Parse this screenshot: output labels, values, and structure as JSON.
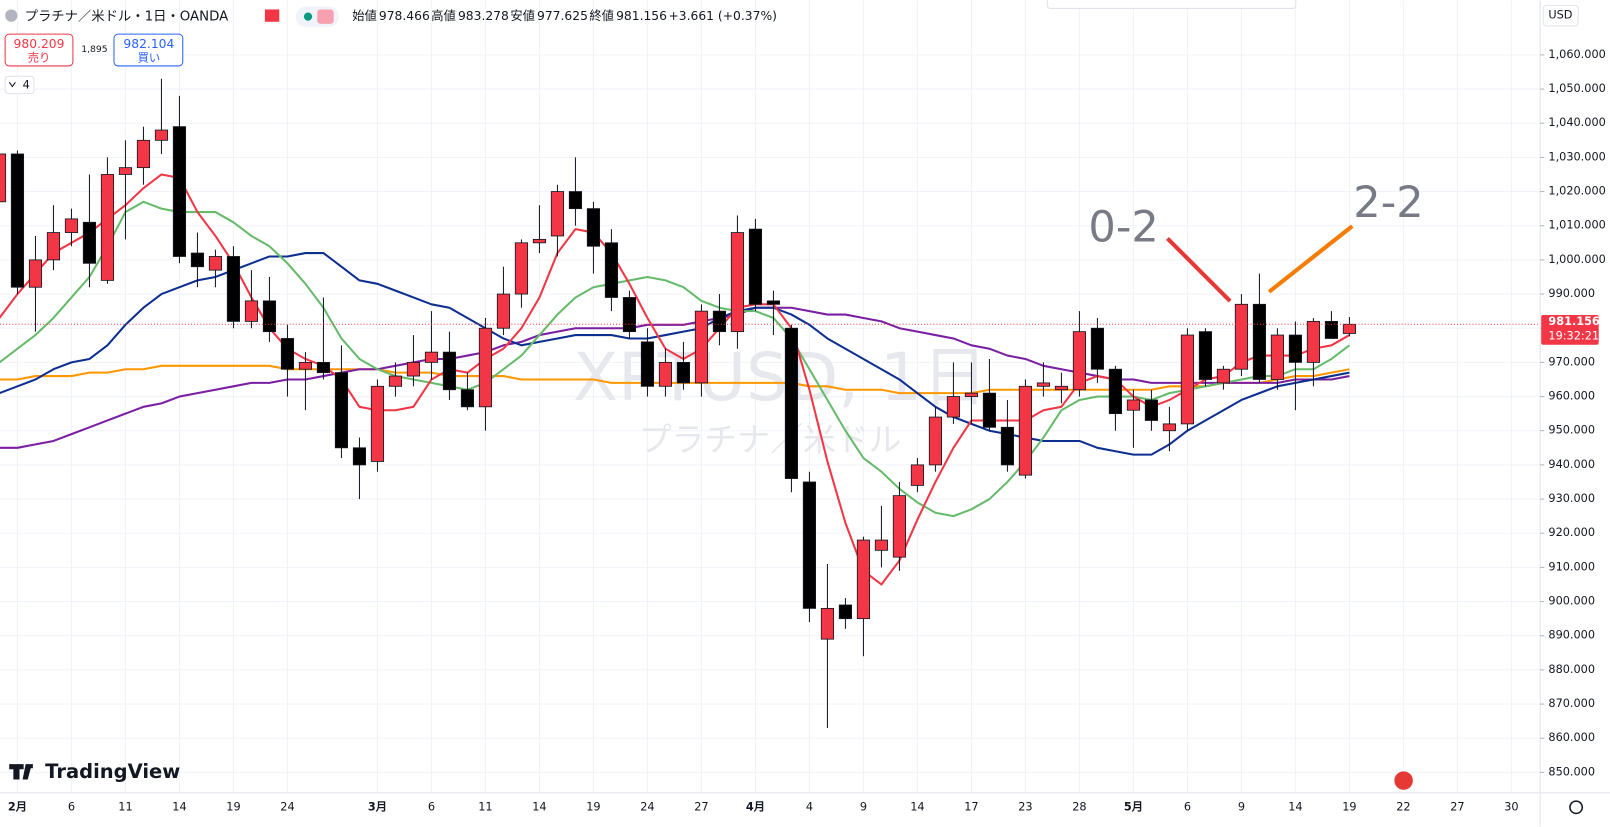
{
  "header": {
    "symbol": "プラチナ／米ドル・1日・OANDA",
    "open_label": "始値",
    "high_label": "高値",
    "low_label": "安値",
    "close_label": "終値",
    "change": "+3.661 (+0.37%)"
  },
  "trade": {
    "sell_price": 980.209,
    "sell": "売り",
    "spread": "1,895",
    "buy_price": 982.104,
    "buy": "買い"
  },
  "indicators_count": 4,
  "watermark": {
    "symbol": "XPTUSD, 1日",
    "name": "プラチナ／米ドル"
  },
  "brand": "TradingView",
  "annotations": [
    "0-2",
    "2-2"
  ],
  "countdown": "19:32:21",
  "chart_data": {
    "type": "candlestick",
    "currency": "USD",
    "categories": [
      null,
      "2月",
      null,
      null,
      "6",
      null,
      null,
      "11",
      null,
      null,
      "14",
      null,
      null,
      "19",
      null,
      null,
      "24",
      null,
      null,
      null,
      null,
      "3月",
      null,
      null,
      "6",
      null,
      null,
      "11",
      null,
      null,
      "14",
      null,
      null,
      "19",
      null,
      null,
      "24",
      null,
      null,
      "27",
      null,
      null,
      "4月",
      null,
      null,
      "4",
      null,
      null,
      "9",
      null,
      null,
      "14",
      null,
      null,
      "17",
      null,
      null,
      "23",
      null,
      null,
      "28",
      null,
      null,
      "5月",
      null,
      null,
      "6",
      null,
      null,
      "9",
      null,
      null,
      "14",
      null,
      null,
      "19",
      null,
      null,
      "22",
      null,
      null,
      "27",
      null,
      null,
      "30"
    ],
    "open": [
      1017,
      1031,
      992,
      1000,
      1008,
      1011,
      994,
      1025,
      1027,
      1035,
      1039,
      1002,
      997,
      1001,
      982,
      988,
      977,
      968,
      970,
      967,
      945,
      941,
      963,
      966,
      970,
      973,
      962,
      957,
      980,
      990,
      1005,
      1007,
      1020,
      1015,
      1005,
      989,
      976,
      963,
      970,
      964,
      985,
      979,
      1009,
      988,
      980,
      935,
      889,
      899,
      895,
      915,
      913,
      934,
      940,
      954,
      960,
      961,
      951,
      937,
      963,
      962,
      962,
      980,
      968,
      956,
      959,
      950,
      952,
      979,
      964,
      968,
      987,
      965,
      978,
      970,
      982,
      978.466,
      null,
      null,
      null,
      null,
      null,
      null,
      null,
      null,
      null
    ],
    "high": [
      1034,
      1032,
      1007,
      1016,
      1015,
      1025,
      1030,
      1035,
      1039,
      1053,
      1048,
      1008,
      1003,
      1004,
      997,
      995,
      981,
      973,
      989,
      975,
      948,
      965,
      970,
      978,
      985,
      979,
      967,
      983,
      998,
      1006,
      1016,
      1022,
      1030,
      1017,
      1009,
      991,
      980,
      974,
      976,
      987,
      990,
      1013,
      1012,
      991,
      981,
      938,
      911,
      901,
      919,
      928,
      935,
      942,
      957,
      970,
      970,
      971,
      959,
      965,
      970,
      967,
      985,
      983,
      969,
      962,
      962,
      957,
      980,
      980,
      969,
      990,
      996,
      980,
      982,
      983,
      985,
      983.278,
      null,
      null,
      null,
      null,
      null,
      null,
      null,
      null,
      null
    ],
    "low": [
      1012,
      990,
      979,
      997,
      1004,
      992,
      993,
      1006,
      1022,
      1031,
      999,
      992,
      992,
      980,
      980,
      976,
      960,
      956,
      965,
      942,
      930,
      938,
      960,
      963,
      965,
      959,
      956,
      950,
      978,
      986,
      1002,
      1001,
      1010,
      996,
      985,
      977,
      960,
      960,
      962,
      960,
      975,
      974,
      985,
      978,
      932,
      894,
      863,
      892,
      884,
      910,
      909,
      932,
      938,
      952,
      952,
      950,
      938,
      936,
      960,
      958,
      960,
      964,
      950,
      945,
      950,
      944,
      950,
      963,
      962,
      966,
      964,
      962,
      956,
      963,
      977,
      977.625,
      null,
      null,
      null,
      null,
      null,
      null,
      null,
      null,
      null
    ],
    "close": [
      1031,
      992,
      1000,
      1008,
      1012,
      999,
      1025,
      1027,
      1035,
      1038,
      1001,
      998,
      1001,
      982,
      988,
      979,
      968,
      970,
      967,
      945,
      940,
      963,
      966,
      970,
      973,
      962,
      957,
      980,
      990,
      1005,
      1006,
      1020,
      1015,
      1004,
      989,
      979,
      963,
      970,
      964,
      985,
      979,
      1008,
      987,
      987,
      936,
      898,
      898,
      895,
      918,
      918,
      931,
      940,
      954,
      960,
      961,
      951,
      940,
      963,
      964,
      963,
      979,
      968,
      955,
      959,
      953,
      952,
      978,
      965,
      968,
      987,
      965,
      978,
      970,
      982,
      977,
      981.156,
      null,
      null,
      null,
      null,
      null,
      null,
      null,
      null,
      null
    ],
    "up_color": "#f23645",
    "down_color": "#000000",
    "series": [
      {
        "color": "#ff9800",
        "values": [
          965,
          965,
          966,
          966,
          966,
          967,
          967,
          968,
          968,
          969,
          969,
          969,
          969,
          969,
          969,
          969,
          968,
          968,
          968,
          968,
          968,
          968,
          967,
          967,
          967,
          966,
          966,
          966,
          966,
          965,
          965,
          965,
          965,
          965,
          964,
          964,
          964,
          964,
          964,
          964,
          964,
          964,
          964,
          964,
          964,
          963,
          963,
          962,
          962,
          962,
          961,
          961,
          961,
          961,
          961,
          962,
          962,
          962,
          962,
          962,
          962,
          962,
          962,
          962,
          962,
          963,
          963,
          963,
          964,
          964,
          964,
          965,
          966,
          966,
          967,
          968,
          null,
          null,
          null,
          null,
          null,
          null,
          null,
          null,
          null
        ]
      },
      {
        "color": "#7b1fa2",
        "values": [
          945,
          945,
          946,
          947,
          949,
          951,
          953,
          955,
          957,
          958,
          960,
          961,
          962,
          963,
          964,
          964,
          965,
          965,
          966,
          967,
          968,
          968,
          969,
          970,
          971,
          971,
          972,
          973,
          975,
          976,
          978,
          979,
          980,
          980,
          980,
          980,
          981,
          981,
          981,
          982,
          983,
          984,
          986,
          986,
          986,
          985,
          984,
          984,
          983,
          982,
          980,
          979,
          978,
          977,
          975,
          974,
          972,
          971,
          969,
          968,
          967,
          966,
          965,
          965,
          964,
          964,
          964,
          964,
          964,
          964,
          964,
          964,
          965,
          965,
          965,
          966,
          null,
          null,
          null,
          null,
          null,
          null,
          null,
          null,
          null
        ]
      },
      {
        "color": "#0d2f8f",
        "values": [
          961,
          963,
          965,
          968,
          970,
          971,
          975,
          981,
          986,
          990,
          992,
          994,
          995,
          997,
          999,
          1001,
          1001,
          1002,
          1002,
          998,
          994,
          993,
          991,
          989,
          987,
          986,
          983,
          980,
          977,
          975,
          976,
          977,
          978,
          978,
          978,
          977,
          977,
          978,
          979,
          980,
          983,
          985,
          986,
          986,
          984,
          981,
          977,
          974,
          971,
          968,
          965,
          961,
          957,
          954,
          952,
          950,
          949,
          948,
          947,
          947,
          947,
          945,
          944,
          943,
          943,
          946,
          950,
          953,
          956,
          959,
          961,
          963,
          964,
          965,
          966,
          967,
          null,
          null,
          null,
          null,
          null,
          null,
          null,
          null,
          null
        ]
      },
      {
        "color": "#66bb6a",
        "values": [
          970,
          974,
          978,
          983,
          989,
          995,
          1004,
          1014,
          1017,
          1015,
          1014,
          1014,
          1014,
          1011,
          1007,
          1004,
          999,
          993,
          986,
          977,
          971,
          968,
          966,
          965,
          964,
          963,
          962,
          964,
          968,
          972,
          978,
          984,
          989,
          992,
          993,
          994,
          995,
          994,
          992,
          988,
          986,
          985,
          985,
          983,
          977,
          968,
          959,
          950,
          942,
          938,
          933,
          929,
          926,
          925,
          927,
          930,
          935,
          941,
          948,
          956,
          959,
          960,
          960,
          960,
          959,
          961,
          962,
          963,
          964,
          965,
          966,
          966,
          968,
          968,
          971,
          975,
          null,
          null,
          null,
          null,
          null,
          null,
          null,
          null,
          null
        ]
      },
      {
        "color": "#f23645",
        "values": [
          983,
          990,
          996,
          1002,
          1005,
          1008,
          1012,
          1016,
          1021,
          1025,
          1024,
          1014,
          1007,
          999,
          989,
          980,
          974,
          971,
          969,
          965,
          957,
          956,
          956,
          957,
          965,
          968,
          967,
          971,
          974,
          980,
          989,
          1002,
          1009,
          1008,
          1002,
          993,
          983,
          974,
          971,
          974,
          980,
          986,
          987,
          987,
          980,
          962,
          941,
          923,
          909,
          905,
          912,
          924,
          935,
          945,
          953,
          953,
          953,
          953,
          956,
          957,
          964,
          966,
          965,
          960,
          957,
          959,
          962,
          965,
          966,
          970,
          972,
          972,
          972,
          974,
          975,
          978,
          null,
          null,
          null,
          null,
          null,
          null,
          null,
          null,
          null
        ]
      }
    ],
    "ylim": [
      844,
      1076
    ],
    "yticks": [
      {
        "value": 850,
        "label": "850.000"
      },
      {
        "value": 860,
        "label": "860.000"
      },
      {
        "value": 870,
        "label": "870.000"
      },
      {
        "value": 880,
        "label": "880.000"
      },
      {
        "value": 890,
        "label": "890.000"
      },
      {
        "value": 900,
        "label": "900.000"
      },
      {
        "value": 910,
        "label": "910.000"
      },
      {
        "value": 920,
        "label": "920.000"
      },
      {
        "value": 930,
        "label": "930.000"
      },
      {
        "value": 940,
        "label": "940.000"
      },
      {
        "value": 950,
        "label": "950.000"
      },
      {
        "value": 960,
        "label": "960.000"
      },
      {
        "value": 970,
        "label": "970.000"
      },
      {
        "value": 980,
        "label": "980.000"
      },
      {
        "value": 990,
        "label": "990.000"
      },
      {
        "value": 1000,
        "label": "1,000.000"
      },
      {
        "value": 1010,
        "label": "1,010.000"
      },
      {
        "value": 1020,
        "label": "1,020.000"
      },
      {
        "value": 1030,
        "label": "1,030.000"
      },
      {
        "value": 1040,
        "label": "1,040.000"
      },
      {
        "value": 1050,
        "label": "1,050.000"
      },
      {
        "value": 1060,
        "label": "1,060.000"
      }
    ],
    "grid": true
  }
}
